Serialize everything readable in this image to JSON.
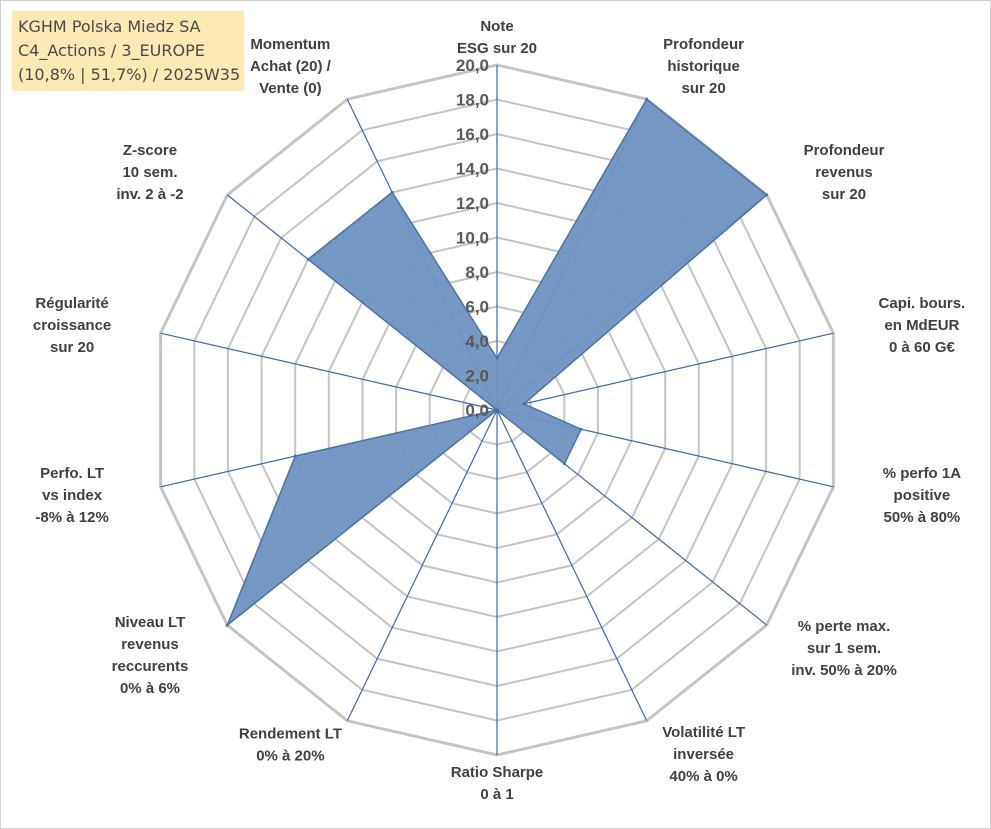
{
  "title_box": {
    "line1": "KGHM Polska Miedz SA",
    "line2": "C4_Actions / 3_EUROPE",
    "line3": "(10,8% | 51,7%) / 2025W35"
  },
  "chart_data": {
    "type": "radar",
    "title": "",
    "rmin": 0,
    "rmax": 20,
    "ticks": [
      "0,0",
      "2,0",
      "4,0",
      "6,0",
      "8,0",
      "10,0",
      "12,0",
      "14,0",
      "16,0",
      "18,0",
      "20,0"
    ],
    "grid": true,
    "colors": {
      "fill": "#6f94c0",
      "edge": "#4a73a8",
      "axis": "#3d67ad",
      "grid": "#c4c4c4"
    },
    "axes": [
      {
        "label": [
          "Note",
          "ESG sur 20"
        ],
        "value": 3.0
      },
      {
        "label": [
          "Profondeur",
          "historique",
          "sur 20"
        ],
        "value": 20.0
      },
      {
        "label": [
          "Profondeur",
          "revenus",
          "sur 20"
        ],
        "value": 20.0
      },
      {
        "label": [
          "Capi. bours.",
          "en MdEUR",
          "0 à 60 G€"
        ],
        "value": 1.6
      },
      {
        "label": [
          "% perfo 1A",
          "positive",
          "50% à 80%"
        ],
        "value": 5.0
      },
      {
        "label": [
          "% perte max.",
          "sur 1 sem.",
          "inv. 50% à 20%"
        ],
        "value": 5.0
      },
      {
        "label": [
          "Volatilité LT",
          "inversée",
          "40% à 0%"
        ],
        "value": 0.0
      },
      {
        "label": [
          "Ratio Sharpe",
          "0 à 1"
        ],
        "value": 0.0
      },
      {
        "label": [
          "Rendement LT",
          "0% à 20%"
        ],
        "value": 0.0
      },
      {
        "label": [
          "Niveau LT",
          "revenus",
          "reccurents",
          "0% à 6%"
        ],
        "value": 20.0
      },
      {
        "label": [
          "Perfo. LT",
          "vs index",
          "-8% à 12%"
        ],
        "value": 12.0
      },
      {
        "label": [
          "Régularité",
          "croissance",
          "sur 20"
        ],
        "value": 0.0
      },
      {
        "label": [
          "Z-score",
          "10 sem.",
          "inv. 2 à -2"
        ],
        "value": 14.0
      },
      {
        "label": [
          "Momentum",
          "Achat (20) /",
          "Vente (0)"
        ],
        "value": 14.0
      }
    ]
  }
}
